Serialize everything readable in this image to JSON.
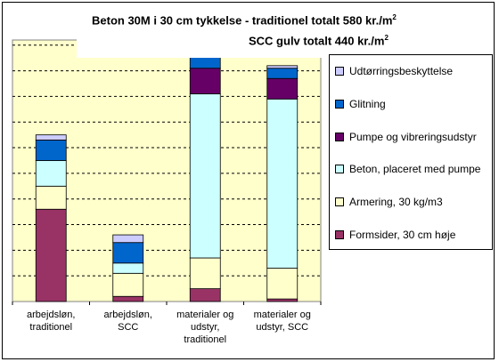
{
  "chart_data": {
    "type": "bar",
    "stacked": true,
    "title_line1": "Beton 30M i 30 cm tykkelse - traditionel totalt 580 kr./m",
    "title_line1_sup": "2",
    "title_line2": "SCC gulv totalt 440 kr./m",
    "title_line2_sup": "2",
    "categories": [
      "arbejdsløn,\ntraditionel",
      "arbejdsløn,\nSCC",
      "materialer og\nudstyr,\ntraditionel",
      "materialer og\nudstyr, SCC"
    ],
    "series": [
      {
        "name": "Formsider, 30 cm høje",
        "color": "#993366",
        "values": [
          36,
          2,
          5,
          1
        ]
      },
      {
        "name": "Armering, 30 kg/m3",
        "color": "#ffffcc",
        "values": [
          9,
          9,
          12,
          12
        ]
      },
      {
        "name": "Beton, placeret med pumpe",
        "color": "#ccffff",
        "values": [
          10,
          4,
          64,
          66
        ]
      },
      {
        "name": "Pumpe og vibreringsudstyr",
        "color": "#660066",
        "values": [
          0,
          0,
          10,
          8
        ]
      },
      {
        "name": "Glitning",
        "color": "#0066cc",
        "values": [
          8,
          8,
          5,
          4
        ]
      },
      {
        "name": "Udtørringsbeskyttelse",
        "color": "#ccccff",
        "values": [
          2,
          3,
          1,
          1
        ]
      }
    ],
    "ylim": [
      0,
      102
    ],
    "grid": true,
    "legend_position": "right"
  }
}
